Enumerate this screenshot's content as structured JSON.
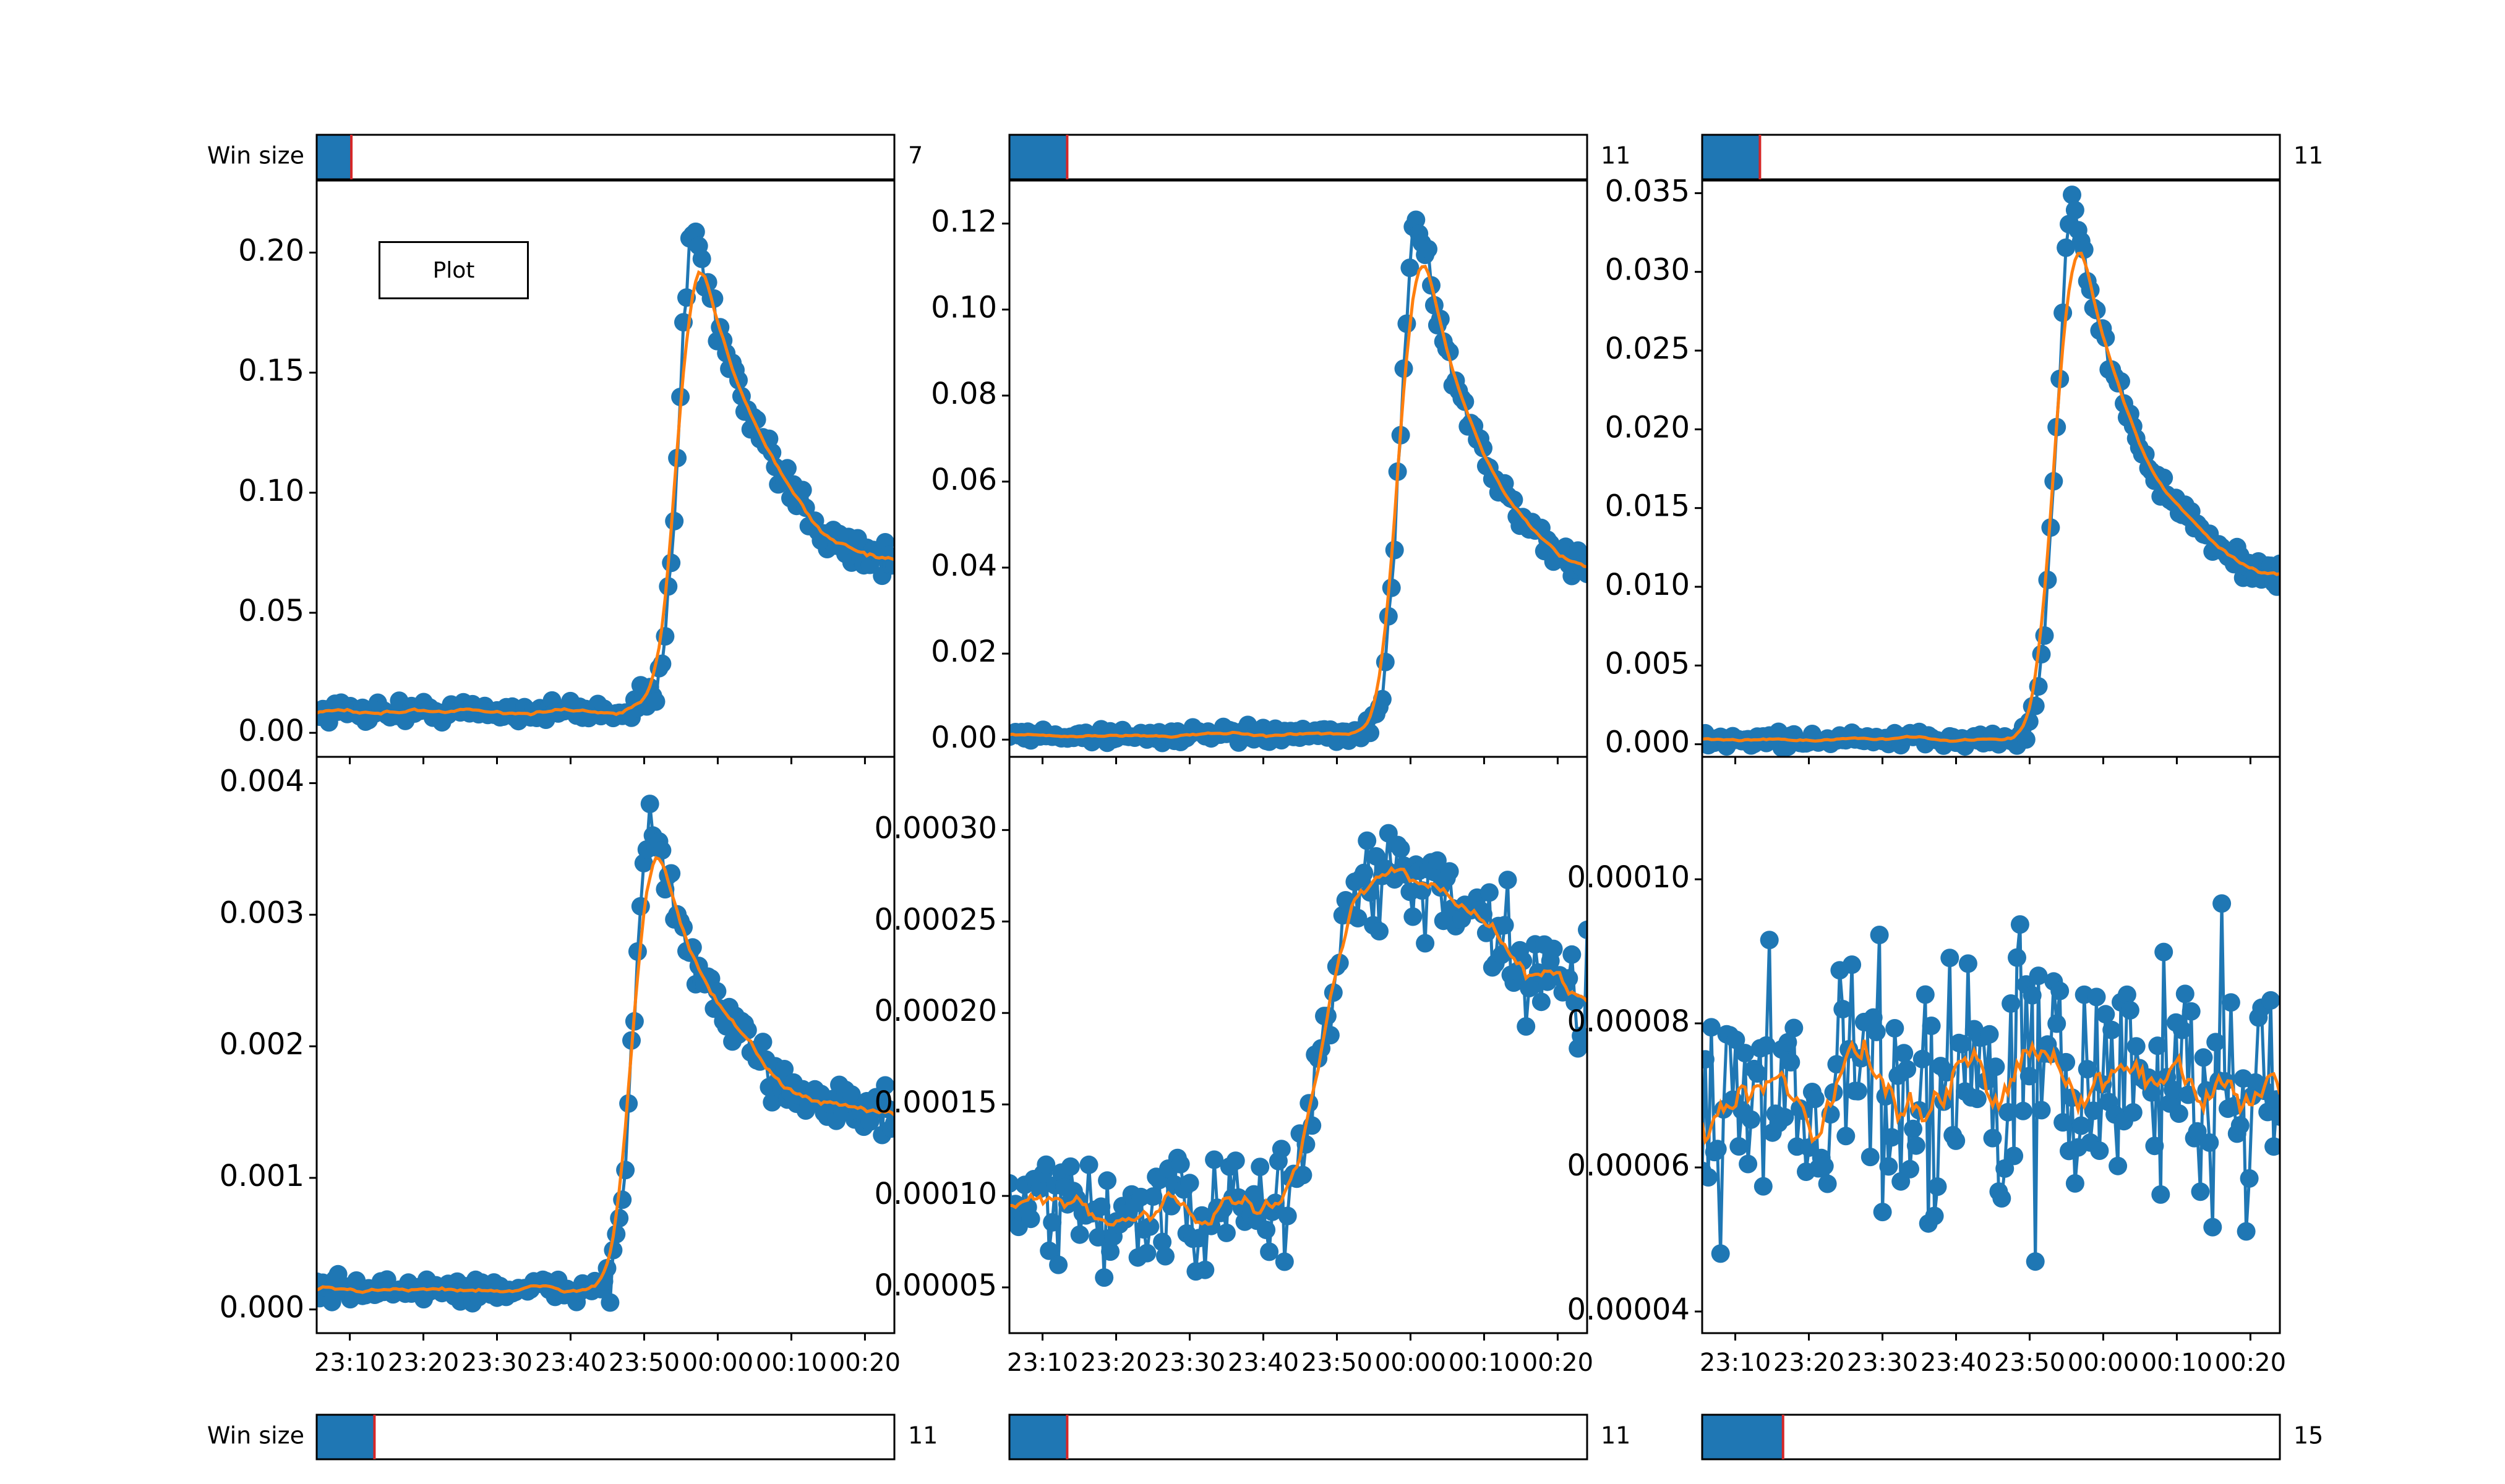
{
  "plot_button_label": "Plot",
  "colors": {
    "series": "#1f77b4",
    "smoothed": "#ff7f0e",
    "slider_fill": "#1f77b4",
    "slider_marker": "#d62728"
  },
  "sliders": [
    {
      "label": "Win size",
      "value": "7",
      "fraction": 0.06
    },
    {
      "label": "",
      "value": "11",
      "fraction": 0.1
    },
    {
      "label": "",
      "value": "11",
      "fraction": 0.1
    },
    {
      "label": "Win size",
      "value": "11",
      "fraction": 0.1
    },
    {
      "label": "",
      "value": "11",
      "fraction": 0.1
    },
    {
      "label": "",
      "value": "15",
      "fraction": 0.14
    }
  ],
  "chart_data": [
    {
      "type": "line",
      "markers": true,
      "peak_time": "23:57",
      "peak": 0.21,
      "baseline": 0.009,
      "tail": 0.062,
      "noise": 0.004,
      "ylim": [
        -0.01,
        0.23
      ],
      "yticks": [
        "0.00",
        "0.05",
        "0.10",
        "0.15",
        "0.20"
      ],
      "xticks": [
        "23:10",
        "23:20",
        "23:30",
        "23:40",
        "23:50",
        "00:00",
        "00:10",
        "00:20"
      ],
      "show_xticks": false
    },
    {
      "type": "line",
      "markers": true,
      "peak_time": "00:01",
      "peak": 0.122,
      "baseline": 0.001,
      "tail": 0.031,
      "noise": 0.0015,
      "ylim": [
        -0.004,
        0.13
      ],
      "yticks": [
        "0.00",
        "0.02",
        "0.04",
        "0.06",
        "0.08",
        "0.10",
        "0.12"
      ],
      "xticks": [
        "23:10",
        "23:20",
        "23:30",
        "23:40",
        "23:50",
        "00:00",
        "00:10",
        "00:20"
      ],
      "show_xticks": false
    },
    {
      "type": "line",
      "markers": true,
      "peak_time": "23:56",
      "peak": 0.0345,
      "baseline": 0.0003,
      "tail": 0.0093,
      "noise": 0.0004,
      "ylim": [
        -0.0008,
        0.0358
      ],
      "yticks": [
        "0.000",
        "0.005",
        "0.010",
        "0.015",
        "0.020",
        "0.025",
        "0.030",
        "0.035"
      ],
      "xticks": [
        "23:10",
        "23:20",
        "23:30",
        "23:40",
        "23:50",
        "00:00",
        "00:10",
        "00:20"
      ],
      "show_xticks": false
    },
    {
      "type": "line",
      "markers": true,
      "peak_time": "23:51",
      "peak": 0.0037,
      "baseline": 0.00015,
      "tail": 0.0014,
      "noise": 8e-05,
      "ylim": [
        -0.00018,
        0.0042
      ],
      "yticks": [
        "0.000",
        "0.001",
        "0.002",
        "0.003",
        "0.004"
      ],
      "xticks": [
        "23:10",
        "23:20",
        "23:30",
        "23:40",
        "23:50",
        "00:00",
        "00:10",
        "00:20"
      ],
      "show_xticks": true
    },
    {
      "type": "line",
      "markers": true,
      "step_time": "23:48",
      "low": 9e-05,
      "high": 0.000275,
      "tail": 0.00021,
      "noise": 2.2e-05,
      "ylim": [
        2.5e-05,
        0.00034
      ],
      "yticks": [
        "0.00005",
        "0.00010",
        "0.00015",
        "0.00020",
        "0.00025",
        "0.00030"
      ],
      "xticks": [
        "23:10",
        "23:20",
        "23:30",
        "23:40",
        "23:50",
        "00:00",
        "00:10",
        "00:20"
      ],
      "show_xticks": true
    },
    {
      "type": "line",
      "markers": true,
      "mean": 7.2e-05,
      "noise": 1.4e-05,
      "ylim": [
        3.7e-05,
        0.000117
      ],
      "yticks": [
        "0.00004",
        "0.00006",
        "0.00008",
        "0.00010"
      ],
      "xticks": [
        "23:10",
        "23:20",
        "23:30",
        "23:40",
        "23:50",
        "00:00",
        "00:10",
        "00:20"
      ],
      "show_xticks": true
    }
  ]
}
